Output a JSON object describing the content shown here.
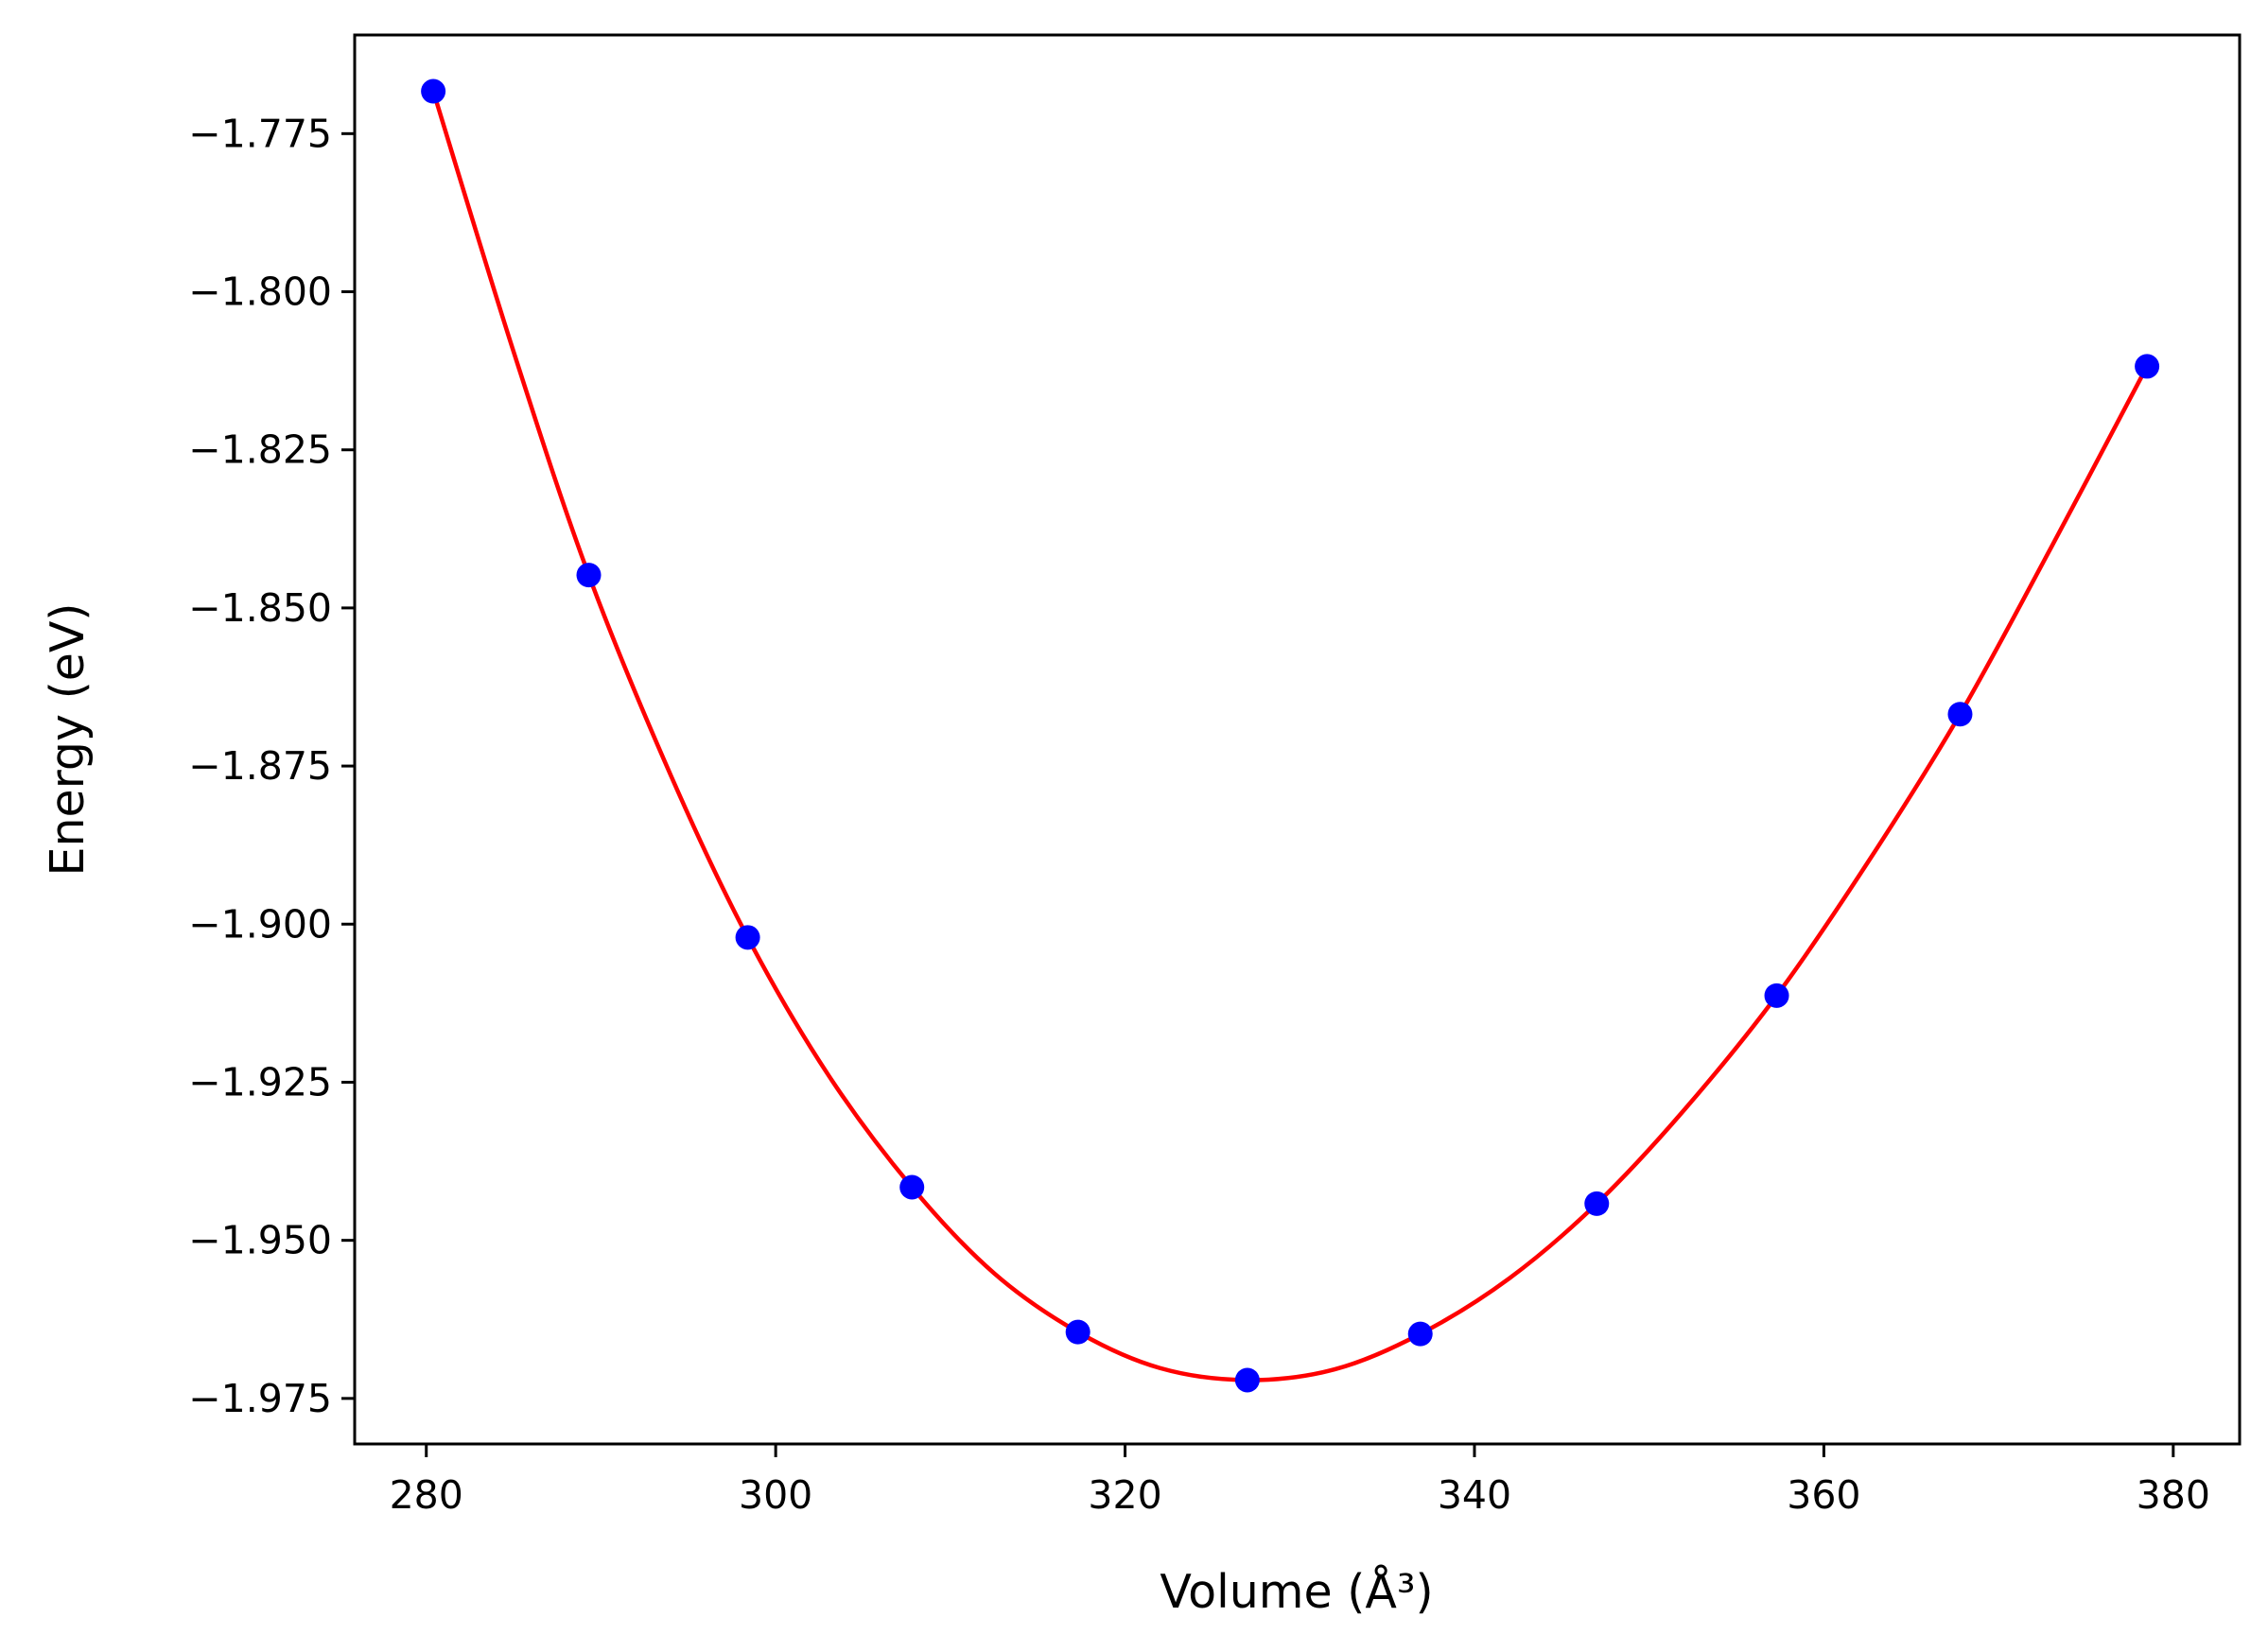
{
  "chart_data": {
    "type": "scatter",
    "title": "",
    "xlabel": "Volume (Å³)",
    "ylabel": "Energy (eV)",
    "xlim": [
      275.9,
      383.8
    ],
    "ylim": [
      -1.9822,
      -1.7594
    ],
    "xticks": [
      280,
      300,
      320,
      340,
      360,
      380
    ],
    "yticks": [
      -1.775,
      -1.8,
      -1.825,
      -1.85,
      -1.875,
      -1.9,
      -1.925,
      -1.95,
      -1.975
    ],
    "xtick_labels": [
      "280",
      "300",
      "320",
      "340",
      "360",
      "380"
    ],
    "ytick_labels": [
      "−1.775",
      "−1.800",
      "−1.825",
      "−1.850",
      "−1.875",
      "−1.900",
      "−1.925",
      "−1.950",
      "−1.975"
    ],
    "grid": false,
    "series": [
      {
        "kind": "points",
        "color": "#0000ff",
        "x": [
          280.4,
          289.3,
          298.4,
          307.8,
          317.3,
          327.0,
          336.9,
          347.0,
          357.3,
          367.8,
          378.5
        ],
        "y": [
          -1.7683,
          -1.8448,
          -1.9021,
          -1.9416,
          -1.9645,
          -1.9721,
          -1.9648,
          -1.9442,
          -1.9113,
          -1.8668,
          -1.8118
        ]
      },
      {
        "kind": "fit-curve",
        "color": "#ff0000",
        "x": [
          280.4,
          285.0,
          289.3,
          294.0,
          298.4,
          303.0,
          307.8,
          312.5,
          317.3,
          322.0,
          327.0,
          332.0,
          336.9,
          342.0,
          347.0,
          352.0,
          357.3,
          362.5,
          367.8,
          373.0,
          378.5
        ],
        "y": [
          -1.7683,
          -1.8095,
          -1.8448,
          -1.8765,
          -1.9021,
          -1.9238,
          -1.9416,
          -1.9552,
          -1.9645,
          -1.9702,
          -1.9721,
          -1.9704,
          -1.9648,
          -1.956,
          -1.9442,
          -1.9294,
          -1.9113,
          -1.8903,
          -1.8668,
          -1.8405,
          -1.8118
        ]
      }
    ]
  }
}
